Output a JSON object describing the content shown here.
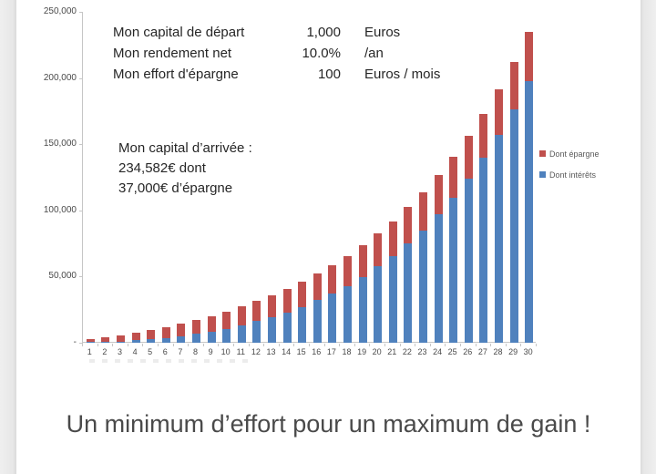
{
  "colors": {
    "epargne_red": "#C0504D",
    "interets_blue": "#4F81BD",
    "axis_gray": "#c6c6c6",
    "text_dark": "#262626",
    "caption_gray": "#4a4a4a",
    "gutter_gray": "#e9e9e9"
  },
  "info_table": {
    "rows": [
      {
        "label": "Mon capital de départ",
        "value": "1,000",
        "unit": "Euros"
      },
      {
        "label": "Mon rendement net",
        "value": "10.0%",
        "unit": "/an"
      },
      {
        "label": "Mon effort d'épargne",
        "value": "100",
        "unit": "Euros / mois"
      }
    ]
  },
  "result_block": {
    "line1": "Mon capital d’arrivée :",
    "line2": "234,582€  dont",
    "line3": "37,000€ d’épargne"
  },
  "caption": "Un minimum d’effort pour un maximum de gain !",
  "chart_data": {
    "type": "bar",
    "stacked": true,
    "title": "",
    "xlabel": "",
    "ylabel": "",
    "grid": false,
    "legend_position": "right",
    "ylim": [
      0,
      250000
    ],
    "ytick_step": 50000,
    "ytick_labels": [
      "-",
      "50,000",
      "100,000",
      "150,000",
      "200,000",
      "250,000"
    ],
    "categories": [
      1,
      2,
      3,
      4,
      5,
      6,
      7,
      8,
      9,
      10,
      11,
      12,
      13,
      14,
      15,
      16,
      17,
      18,
      19,
      20,
      21,
      22,
      23,
      24,
      25,
      26,
      27,
      28,
      29,
      30
    ],
    "series": [
      {
        "name": "Dont intérêts",
        "color": "#4F81BD",
        "stack_order": "bottom",
        "values": [
          220,
          582,
          1100,
          1790,
          2669,
          3756,
          5072,
          6639,
          8483,
          10631,
          13114,
          15966,
          19222,
          22925,
          27117,
          31849,
          37174,
          43151,
          49846,
          57331,
          65684,
          74992,
          85351,
          96866,
          109653,
          123838,
          139562,
          156978,
          176256,
          197582
        ]
      },
      {
        "name": "Dont épargne",
        "color": "#C0504D",
        "stack_order": "top",
        "values": [
          2200,
          3400,
          4600,
          5800,
          7000,
          8200,
          9400,
          10600,
          11800,
          13000,
          14200,
          15400,
          16600,
          17800,
          19000,
          20200,
          21400,
          22600,
          23800,
          25000,
          26200,
          27400,
          28600,
          29800,
          31000,
          32200,
          33400,
          34600,
          35800,
          37000
        ]
      }
    ],
    "totals": [
      2420,
      3982,
      5700,
      7590,
      9669,
      11956,
      14472,
      17239,
      20283,
      23631,
      27314,
      31366,
      35822,
      40725,
      46117,
      52049,
      58573,
      65751,
      73646,
      82331,
      91884,
      102392,
      113951,
      126666,
      140653,
      156038,
      172962,
      191578,
      212056,
      234582
    ],
    "legend": [
      {
        "label": "Dont épargne",
        "color": "#C0504D"
      },
      {
        "label": "Dont intérêts",
        "color": "#4F81BD"
      }
    ],
    "annotations": [
      "Mon capital de départ 1,000 Euros",
      "Mon rendement net 10.0% /an",
      "Mon effort d'épargne 100 Euros / mois",
      "Mon capital d’arrivée : 234,582€ dont 37,000€ d’épargne"
    ]
  }
}
